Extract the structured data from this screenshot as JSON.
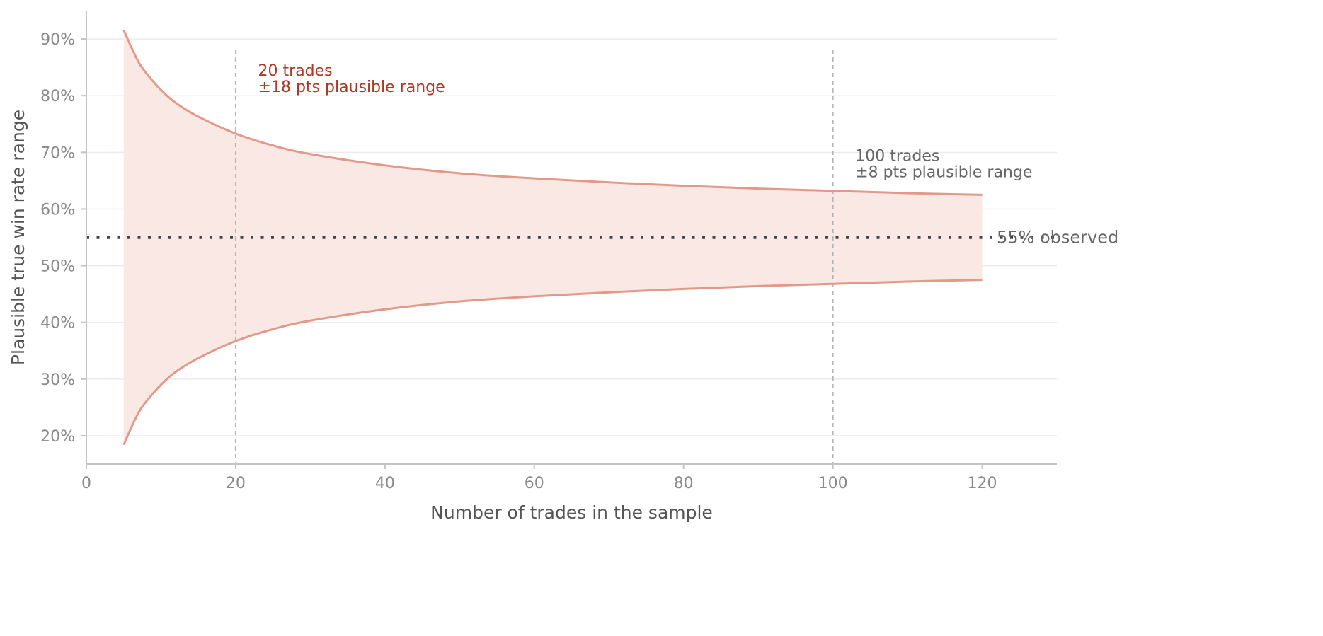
{
  "chart_data": {
    "type": "area",
    "title": "",
    "xlabel": "Number of trades in the sample",
    "ylabel": "Plausible true win rate range",
    "xlim": [
      0,
      130
    ],
    "ylim": [
      15,
      95
    ],
    "x_ticks": [
      0,
      20,
      40,
      60,
      80,
      100,
      120
    ],
    "y_ticks": [
      20,
      30,
      40,
      50,
      60,
      70,
      80,
      90
    ],
    "y_tick_labels": [
      "20%",
      "30%",
      "40%",
      "50%",
      "60%",
      "70%",
      "80%",
      "90%"
    ],
    "grid": "horizontal",
    "observed_rate": 55,
    "observed_label": "55% observed",
    "band": {
      "x": [
        5,
        6,
        7,
        8,
        10,
        12,
        15,
        20,
        25,
        30,
        40,
        50,
        60,
        70,
        80,
        90,
        100,
        110,
        120
      ],
      "upper": [
        91.6,
        88.6,
        85.9,
        84.0,
        81.0,
        78.7,
        76.3,
        73.3,
        71.2,
        69.7,
        67.7,
        66.3,
        65.4,
        64.7,
        64.1,
        63.6,
        63.2,
        62.8,
        62.5
      ],
      "lower": [
        18.4,
        21.4,
        24.1,
        26.0,
        29.0,
        31.3,
        33.7,
        36.7,
        38.8,
        40.3,
        42.3,
        43.7,
        44.6,
        45.3,
        45.9,
        46.4,
        46.8,
        47.2,
        47.5
      ]
    },
    "reference_lines": [
      20,
      100
    ],
    "annotations": [
      {
        "x": 23,
        "y": 83.5,
        "line1": "20 trades",
        "line2": "±18 pts plausible range",
        "color": "#a93a26"
      },
      {
        "x": 103,
        "y": 68.5,
        "line1": "100 trades",
        "line2": "±8 pts plausible range",
        "color": "#666666"
      }
    ],
    "colors": {
      "band_fill": "#f9e8e3",
      "band_line": "#e3998a",
      "observed_line": "#444444",
      "reference_line": "#b5b5b5",
      "grid": "#ebebeb",
      "axis": "#c4c4c4"
    }
  }
}
